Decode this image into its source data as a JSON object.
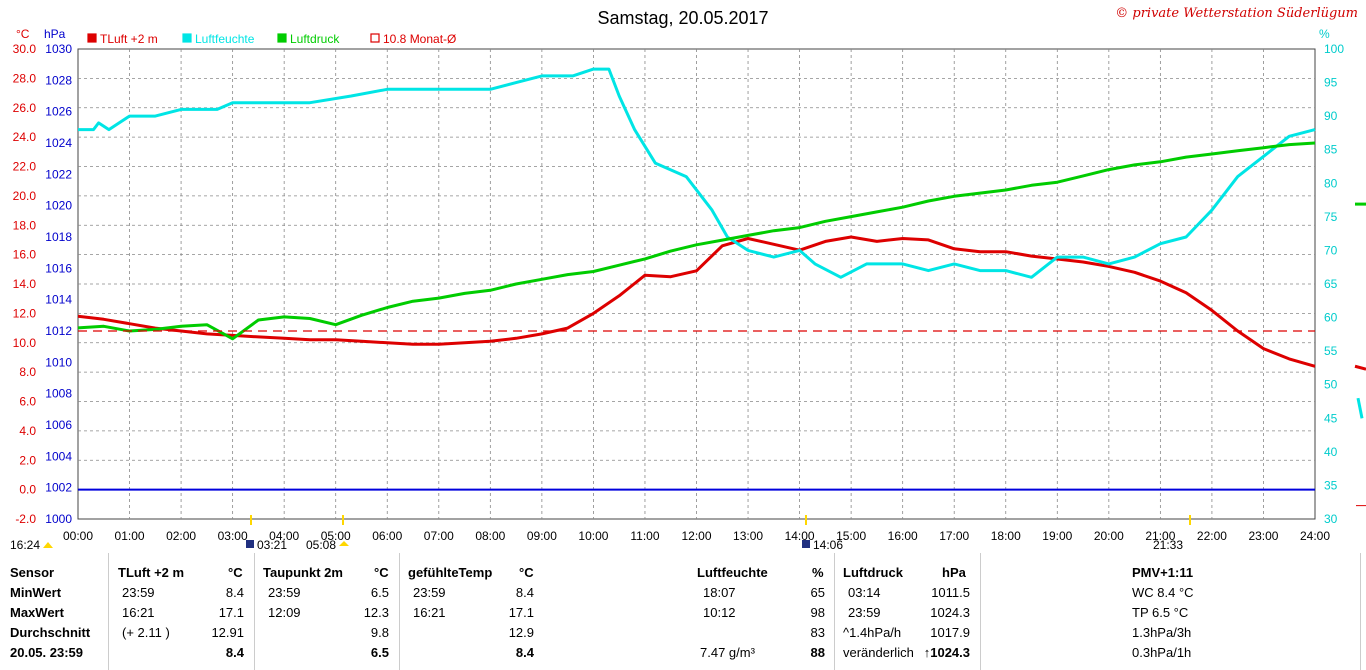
{
  "title": "Samstag, 20.05.2017",
  "copyright": "© private Wetterstation Süderlügum",
  "legend": [
    {
      "label": "TLuft +2 m",
      "color": "#dd0000",
      "symbol": "box"
    },
    {
      "label": "Luftfeuchte",
      "color": "#00e5e5",
      "symbol": "box"
    },
    {
      "label": "Luftdruck",
      "color": "#00cc00",
      "symbol": "box"
    },
    {
      "label": "10.8 Monat-Ø",
      "color": "#dd0000",
      "symbol": "open"
    }
  ],
  "axis_units": {
    "left_temp": "°C",
    "left_pressure": "hPa",
    "right_humidity": "%"
  },
  "markers": {
    "left_time": "16:24",
    "t0321": "03:21",
    "t0508": "05:08",
    "t1406": "14:06",
    "t2133": "21:33"
  },
  "chart_data": {
    "type": "line",
    "title": "Samstag, 20.05.2017",
    "x_ticks": [
      "00:00",
      "01:00",
      "02:00",
      "03:00",
      "04:00",
      "05:00",
      "06:00",
      "07:00",
      "08:00",
      "09:00",
      "10:00",
      "11:00",
      "12:00",
      "13:00",
      "14:00",
      "15:00",
      "16:00",
      "17:00",
      "18:00",
      "19:00",
      "20:00",
      "21:00",
      "22:00",
      "23:00",
      "24:00"
    ],
    "xlim": [
      0,
      24
    ],
    "temp_axis": {
      "label": "°C",
      "ylim": [
        -2,
        30
      ],
      "ticks": [
        "-2.0",
        "0.0",
        "2.0",
        "4.0",
        "6.0",
        "8.0",
        "10.0",
        "12.0",
        "14.0",
        "16.0",
        "18.0",
        "20.0",
        "22.0",
        "24.0",
        "26.0",
        "28.0",
        "30.0"
      ]
    },
    "pressure_axis": {
      "label": "hPa",
      "ylim": [
        1000,
        1030
      ],
      "ticks": [
        "1000",
        "1002",
        "1004",
        "1006",
        "1008",
        "1010",
        "1012",
        "1014",
        "1016",
        "1018",
        "1020",
        "1022",
        "1024",
        "1026",
        "1028",
        "1030"
      ]
    },
    "humidity_axis": {
      "label": "%",
      "ylim": [
        30,
        100
      ],
      "ticks": [
        "30",
        "35",
        "40",
        "45",
        "50",
        "55",
        "60",
        "65",
        "70",
        "75",
        "80",
        "85",
        "90",
        "95",
        "100"
      ]
    },
    "grid": true,
    "series": [
      {
        "name": "TLuft +2 m",
        "axis": "temp",
        "color": "#dd0000",
        "x": [
          0,
          0.5,
          1,
          1.5,
          2,
          2.5,
          3,
          3.5,
          4,
          4.5,
          5,
          5.5,
          6,
          6.5,
          7,
          7.5,
          8,
          8.5,
          9,
          9.5,
          10,
          10.5,
          11,
          11.5,
          12,
          12.5,
          13,
          13.5,
          14,
          14.5,
          15,
          15.5,
          16,
          16.5,
          17,
          17.5,
          18,
          18.5,
          19,
          19.5,
          20,
          20.5,
          21,
          21.5,
          22,
          22.5,
          23,
          23.5,
          24
        ],
        "values": [
          11.8,
          11.6,
          11.3,
          11.0,
          10.8,
          10.6,
          10.5,
          10.4,
          10.3,
          10.2,
          10.2,
          10.1,
          10.0,
          9.9,
          9.9,
          10.0,
          10.1,
          10.3,
          10.6,
          11.0,
          12.0,
          13.2,
          14.6,
          14.5,
          14.9,
          16.6,
          17.1,
          16.7,
          16.3,
          16.9,
          17.2,
          16.9,
          17.1,
          17.0,
          16.4,
          16.2,
          16.2,
          15.9,
          15.7,
          15.5,
          15.2,
          14.8,
          14.2,
          13.4,
          12.2,
          10.8,
          9.6,
          8.9,
          8.4
        ]
      },
      {
        "name": "Luftfeuchte",
        "axis": "humidity",
        "color": "#00e5e5",
        "x": [
          0,
          0.3,
          0.4,
          0.6,
          1,
          1.5,
          2,
          2.7,
          3,
          3.4,
          3.9,
          4.5,
          5.3,
          6,
          7,
          8,
          8.5,
          9,
          9.6,
          10,
          10.3,
          10.5,
          10.8,
          11.2,
          11.8,
          12.3,
          12.6,
          13,
          13.5,
          14,
          14.3,
          14.8,
          15.3,
          16,
          16.5,
          17,
          17.5,
          18,
          18.5,
          19,
          19.5,
          20,
          20.5,
          21,
          21.5,
          22,
          22.5,
          23,
          23.5,
          24
        ],
        "values": [
          88,
          88,
          89,
          88,
          90,
          90,
          91,
          91,
          92,
          92,
          92,
          92,
          93,
          94,
          94,
          94,
          95,
          96,
          96,
          97,
          97,
          93,
          88,
          83,
          81,
          76,
          72,
          70,
          69,
          70,
          68,
          66,
          68,
          68,
          67,
          68,
          67,
          67,
          66,
          69,
          69,
          68,
          69,
          71,
          72,
          76,
          81,
          84,
          87,
          88
        ]
      },
      {
        "name": "Luftdruck",
        "axis": "pressure",
        "color": "#00cc00",
        "x": [
          0,
          0.5,
          1,
          1.5,
          2,
          2.5,
          3,
          3.5,
          4,
          4.5,
          5,
          5.5,
          6,
          6.5,
          7,
          7.5,
          8,
          8.5,
          9,
          9.5,
          10,
          10.5,
          11,
          11.5,
          12,
          12.5,
          13,
          13.5,
          14,
          14.5,
          15,
          15.5,
          16,
          16.5,
          17,
          17.5,
          18,
          18.5,
          19,
          19.5,
          20,
          20.5,
          21,
          21.5,
          22,
          22.5,
          23,
          23.5,
          24
        ],
        "values": [
          1012.2,
          1012.3,
          1012.0,
          1012.1,
          1012.3,
          1012.4,
          1011.5,
          1012.7,
          1012.9,
          1012.8,
          1012.4,
          1013.0,
          1013.5,
          1013.9,
          1014.1,
          1014.4,
          1014.6,
          1015.0,
          1015.3,
          1015.6,
          1015.8,
          1016.2,
          1016.6,
          1017.1,
          1017.5,
          1017.8,
          1018.1,
          1018.4,
          1018.6,
          1019.0,
          1019.3,
          1019.6,
          1019.9,
          1020.3,
          1020.6,
          1020.8,
          1021.0,
          1021.3,
          1021.5,
          1021.9,
          1022.3,
          1022.6,
          1022.8,
          1023.1,
          1023.3,
          1023.5,
          1023.7,
          1023.9,
          1024.0
        ]
      },
      {
        "name": "10.8 Monat-Ø",
        "axis": "temp",
        "color": "#dd0000",
        "dashed": true,
        "x": [
          0,
          24
        ],
        "values": [
          10.8,
          10.8
        ]
      },
      {
        "name": "",
        "axis": "temp",
        "color": "#0000dd",
        "x": [
          0,
          24
        ],
        "values": [
          0,
          0
        ]
      }
    ]
  },
  "table": {
    "row_headers": [
      "Sensor",
      "MinWert",
      "MaxWert",
      "Durchschnitt",
      "20.05. 23:59"
    ],
    "tluft": {
      "title": "TLuft +2 m",
      "unit": "°C",
      "times": [
        "23:59",
        "16:21",
        "(+ 2.11 )",
        ""
      ],
      "values": [
        "8.4",
        "17.1",
        "12.91",
        "8.4"
      ]
    },
    "taupunkt": {
      "title": "Taupunkt 2m",
      "unit": "°C",
      "times": [
        "23:59",
        "12:09",
        "",
        ""
      ],
      "values": [
        "6.5",
        "12.3",
        "9.8",
        "6.5"
      ]
    },
    "gefuehlt": {
      "title": "gefühlteTemp",
      "unit": "°C",
      "times": [
        "23:59",
        "16:21",
        "",
        ""
      ],
      "values": [
        "8.4",
        "17.1",
        "12.9",
        "8.4"
      ]
    },
    "feuchte": {
      "title": "Luftfeuchte",
      "unit": "%",
      "times": [
        "18:07",
        "10:12",
        "",
        "7.47 g/m³"
      ],
      "values": [
        "65",
        "98",
        "83",
        "88"
      ]
    },
    "druck": {
      "title": "Luftdruck",
      "unit": "hPa",
      "times": [
        "03:14",
        "23:59",
        "^1.4hPa/h",
        "veränderlich"
      ],
      "values": [
        "1011.5",
        "1024.3",
        "1017.9",
        "↑1024.3"
      ]
    },
    "pmv": {
      "title": "PMV+1:11",
      "rows": [
        "WC 8.4 °C",
        "TP 6.5 °C",
        "1.3hPa/3h",
        "0.3hPa/1h"
      ]
    }
  }
}
